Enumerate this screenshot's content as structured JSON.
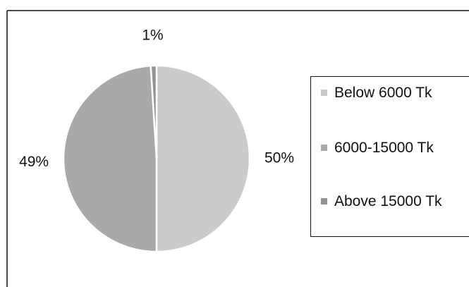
{
  "chart_data": {
    "type": "pie",
    "categories": [
      "Below 6000 Tk",
      "6000-15000 Tk",
      "Above 15000 Tk"
    ],
    "values": [
      50,
      49,
      1
    ],
    "value_labels": [
      "50%",
      "49%",
      "1%"
    ],
    "colors": [
      "#cbcbcb",
      "#a9a9a9",
      "#939393"
    ],
    "legend": "right"
  }
}
